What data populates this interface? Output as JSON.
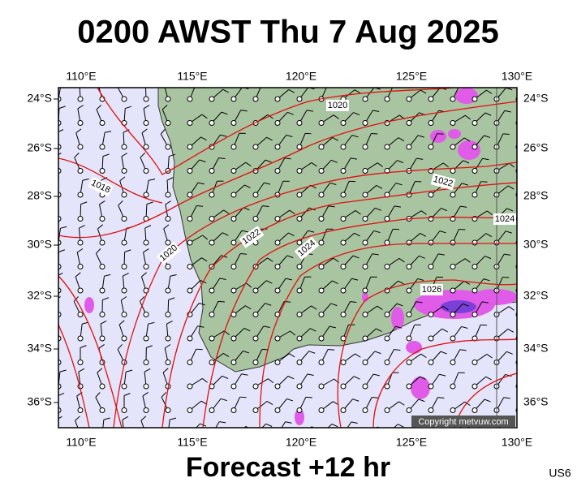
{
  "title": "0200 AWST Thu 7 Aug 2025",
  "footer": "Forecast +12 hr",
  "code": "US6",
  "copyright": "Copyright metvuw.com",
  "longitude_labels": [
    "110°E",
    "115°E",
    "120°E",
    "125°E",
    "130°E"
  ],
  "latitude_labels": [
    "24°S",
    "26°S",
    "28°S",
    "30°S",
    "32°S",
    "34°S",
    "36°S"
  ],
  "isobar_labels": [
    "1020",
    "1018",
    "1020",
    "1022",
    "1024",
    "1022",
    "1024",
    "1026"
  ]
}
